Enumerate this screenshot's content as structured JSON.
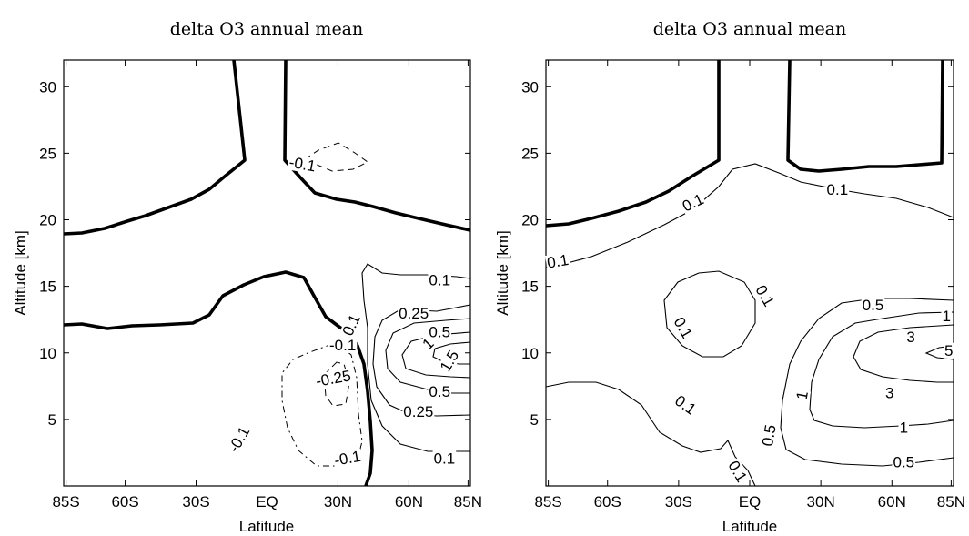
{
  "chart_data": [
    {
      "type": "contour",
      "title": "delta O3 annual mean",
      "xlabel": "Latitude",
      "ylabel": "Altitude  [km]",
      "xticks": [
        "85S",
        "60S",
        "30S",
        "EQ",
        "30N",
        "60N",
        "85N"
      ],
      "xtick_values": [
        -85,
        -60,
        -30,
        0,
        30,
        60,
        85
      ],
      "yticks": [
        "5",
        "10",
        "15",
        "20",
        "25",
        "30"
      ],
      "ytick_values": [
        5,
        10,
        15,
        20,
        25,
        30
      ],
      "xlim": [
        -86,
        86
      ],
      "ylim": [
        0,
        32
      ],
      "contour_labels": [
        {
          "text": "-0.1",
          "lat": 15,
          "alt": 24.2,
          "rot": 10
        },
        {
          "text": "0.1",
          "lat": 73,
          "alt": 15.5,
          "rot": 0
        },
        {
          "text": "0.25",
          "lat": 62,
          "alt": 13,
          "rot": 0
        },
        {
          "text": "0.5",
          "lat": 73,
          "alt": 11.6,
          "rot": 0
        },
        {
          "text": "1",
          "lat": 68,
          "alt": 10.7,
          "rot": -45
        },
        {
          "text": "1.5",
          "lat": 77,
          "alt": 9.4,
          "rot": -60
        },
        {
          "text": "0.5",
          "lat": 73,
          "alt": 7.1,
          "rot": 0
        },
        {
          "text": "0.25",
          "lat": 64,
          "alt": 5.6,
          "rot": 0
        },
        {
          "text": "0.1",
          "lat": 75,
          "alt": 2.1,
          "rot": 0
        },
        {
          "text": "0.1",
          "lat": 35.5,
          "alt": 12.1,
          "rot": -65
        },
        {
          "text": "-0.1",
          "lat": 32,
          "alt": 10.6,
          "rot": 0
        },
        {
          "text": "-0.25",
          "lat": 28,
          "alt": 8.1,
          "rot": -10
        },
        {
          "text": "-0.1",
          "lat": -12,
          "alt": 3.5,
          "rot": -60
        },
        {
          "text": "-0.1",
          "lat": 34,
          "alt": 2.1,
          "rot": -10
        }
      ]
    },
    {
      "type": "contour",
      "title": "delta O3 annual mean",
      "xlabel": "Latitude",
      "ylabel": "Altitude  [km]",
      "xticks": [
        "85S",
        "60S",
        "30S",
        "EQ",
        "30N",
        "60N",
        "85N"
      ],
      "xtick_values": [
        -85,
        -60,
        -30,
        0,
        30,
        60,
        85
      ],
      "yticks": [
        "5",
        "10",
        "15",
        "20",
        "25",
        "30"
      ],
      "ytick_values": [
        5,
        10,
        15,
        20,
        25,
        30
      ],
      "xlim": [
        -86,
        86
      ],
      "ylim": [
        0,
        32
      ],
      "contour_labels": [
        {
          "text": "0.1",
          "lat": -24,
          "alt": 21.3,
          "rot": -25
        },
        {
          "text": "0.1",
          "lat": 37,
          "alt": 22.3,
          "rot": 0
        },
        {
          "text": "0.1",
          "lat": -81,
          "alt": 16.9,
          "rot": -10
        },
        {
          "text": "0.1",
          "lat": -28,
          "alt": 11.9,
          "rot": 60
        },
        {
          "text": "0.1",
          "lat": 6.5,
          "alt": 14.3,
          "rot": 60
        },
        {
          "text": "0.5",
          "lat": 52,
          "alt": 13.6,
          "rot": 0
        },
        {
          "text": "1",
          "lat": 83,
          "alt": 12.8,
          "rot": 0
        },
        {
          "text": "3",
          "lat": 68,
          "alt": 11.2,
          "rot": 0
        },
        {
          "text": "5",
          "lat": 84,
          "alt": 10.2,
          "rot": 0
        },
        {
          "text": "1",
          "lat": 22,
          "alt": 6.8,
          "rot": -80
        },
        {
          "text": "3",
          "lat": 59,
          "alt": 7,
          "rot": 0
        },
        {
          "text": "1",
          "lat": 65,
          "alt": 4.4,
          "rot": 0
        },
        {
          "text": "0.5",
          "lat": 8,
          "alt": 3.8,
          "rot": -80
        },
        {
          "text": "0.5",
          "lat": 65,
          "alt": 1.8,
          "rot": 0
        },
        {
          "text": "0.1",
          "lat": -27,
          "alt": 6.1,
          "rot": 35
        },
        {
          "text": "0.1",
          "lat": -5,
          "alt": 1.1,
          "rot": 60
        }
      ]
    }
  ]
}
